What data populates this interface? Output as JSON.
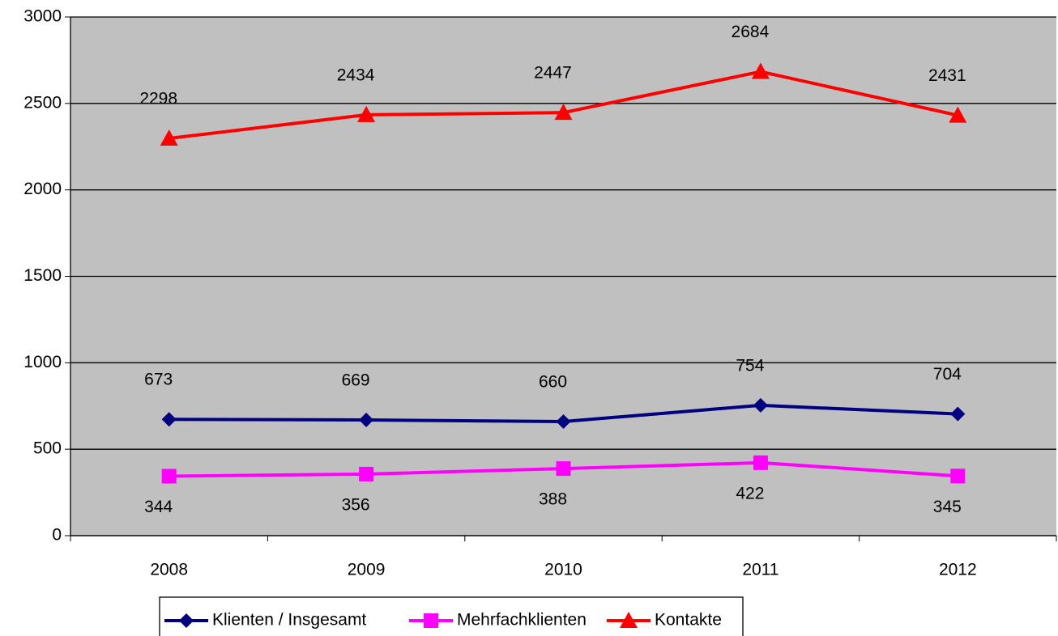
{
  "chart_data": {
    "type": "line",
    "categories": [
      "2008",
      "2009",
      "2010",
      "2011",
      "2012"
    ],
    "series": [
      {
        "name": "Klienten / Insgesamt",
        "color": "#000080",
        "marker": "diamond",
        "values": [
          673,
          669,
          660,
          754,
          704
        ],
        "label_position": "above"
      },
      {
        "name": "Mehrfachklienten",
        "color": "#ff00ff",
        "marker": "square",
        "values": [
          344,
          356,
          388,
          422,
          345
        ],
        "label_position": "below"
      },
      {
        "name": "Kontakte",
        "color": "#ff0000",
        "marker": "triangle",
        "values": [
          2298,
          2434,
          2447,
          2684,
          2431
        ],
        "label_position": "above"
      }
    ],
    "ylim": [
      0,
      3000
    ],
    "yticks": [
      0,
      500,
      1000,
      1500,
      2000,
      2500,
      3000
    ],
    "grid": true,
    "legend": "bottom",
    "plot_background": "#c0c0c0"
  }
}
